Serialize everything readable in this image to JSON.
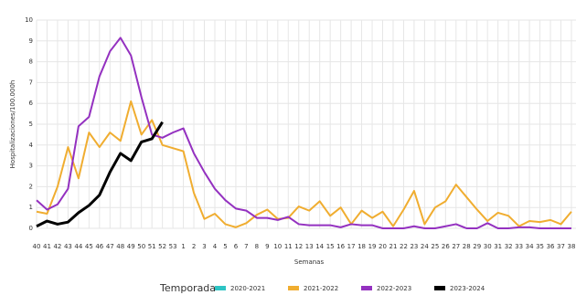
{
  "chart_data": {
    "type": "line",
    "x_label": "Semanas",
    "y_label": "Hospitalizaciones/100.000h",
    "legend_title": "Temporada",
    "categories": [
      "40",
      "41",
      "42",
      "43",
      "44",
      "45",
      "46",
      "47",
      "48",
      "49",
      "50",
      "51",
      "52",
      "53",
      "1",
      "2",
      "3",
      "4",
      "5",
      "6",
      "7",
      "8",
      "9",
      "10",
      "11",
      "12",
      "13",
      "14",
      "15",
      "16",
      "17",
      "18",
      "19",
      "20",
      "21",
      "22",
      "23",
      "24",
      "25",
      "26",
      "27",
      "28",
      "29",
      "30",
      "31",
      "32",
      "33",
      "34",
      "35",
      "36",
      "37",
      "38"
    ],
    "ylim": [
      0,
      10
    ],
    "yticks": [
      0,
      1,
      2,
      3,
      4,
      5,
      6,
      7,
      8,
      9,
      10
    ],
    "grid": true,
    "legend_position": "bottom",
    "series": [
      {
        "name": "2020-2021",
        "color": "#2ec4c4",
        "values": [
          null,
          null,
          null,
          null,
          null,
          null,
          null,
          null,
          null,
          null,
          null,
          null,
          null,
          null,
          null,
          null,
          null,
          null,
          null,
          null,
          null,
          null,
          null,
          null,
          null,
          null,
          null,
          null,
          null,
          null,
          null,
          null,
          null,
          null,
          null,
          null,
          null,
          null,
          null,
          null,
          null,
          null,
          null,
          null,
          null,
          null,
          null,
          null,
          null,
          null,
          null,
          null
        ]
      },
      {
        "name": "2021-2022",
        "color": "#f0ad30",
        "values": [
          0.8,
          0.7,
          2.0,
          3.9,
          2.4,
          4.6,
          3.9,
          4.6,
          4.2,
          6.1,
          4.5,
          5.2,
          4.0,
          3.85,
          3.7,
          1.7,
          0.45,
          0.7,
          0.2,
          0.05,
          0.25,
          0.65,
          0.9,
          0.45,
          0.5,
          1.05,
          0.85,
          1.3,
          0.6,
          1.0,
          0.2,
          0.85,
          0.5,
          0.8,
          0.1,
          0.9,
          1.8,
          0.2,
          1.0,
          1.3,
          2.1,
          1.5,
          0.9,
          0.35,
          0.75,
          0.6,
          0.1,
          0.35,
          0.3,
          0.4,
          0.2,
          0.8
        ]
      },
      {
        "name": "2022-2023",
        "color": "#9431c0",
        "values": [
          1.35,
          0.9,
          1.15,
          1.9,
          4.9,
          5.35,
          7.3,
          8.5,
          9.15,
          8.3,
          6.3,
          4.5,
          4.35,
          4.6,
          4.8,
          3.6,
          2.7,
          1.9,
          1.35,
          0.95,
          0.85,
          0.5,
          0.5,
          0.4,
          0.55,
          0.2,
          0.15,
          0.15,
          0.15,
          0.05,
          0.2,
          0.15,
          0.15,
          0,
          0,
          0,
          0.1,
          0,
          0,
          0.1,
          0.2,
          0,
          0,
          0.25,
          0,
          0,
          0.05,
          0.05,
          0,
          0,
          0,
          0
        ]
      },
      {
        "name": "2023-2024",
        "color": "#000000",
        "values": [
          0.1,
          0.35,
          0.2,
          0.3,
          0.75,
          1.1,
          1.6,
          2.7,
          3.6,
          3.25,
          4.15,
          4.3,
          5.1,
          null,
          null,
          null,
          null,
          null,
          null,
          null,
          null,
          null,
          null,
          null,
          null,
          null,
          null,
          null,
          null,
          null,
          null,
          null,
          null,
          null,
          null,
          null,
          null,
          null,
          null,
          null,
          null,
          null,
          null,
          null,
          null,
          null,
          null,
          null,
          null,
          null,
          null,
          null
        ]
      }
    ]
  }
}
